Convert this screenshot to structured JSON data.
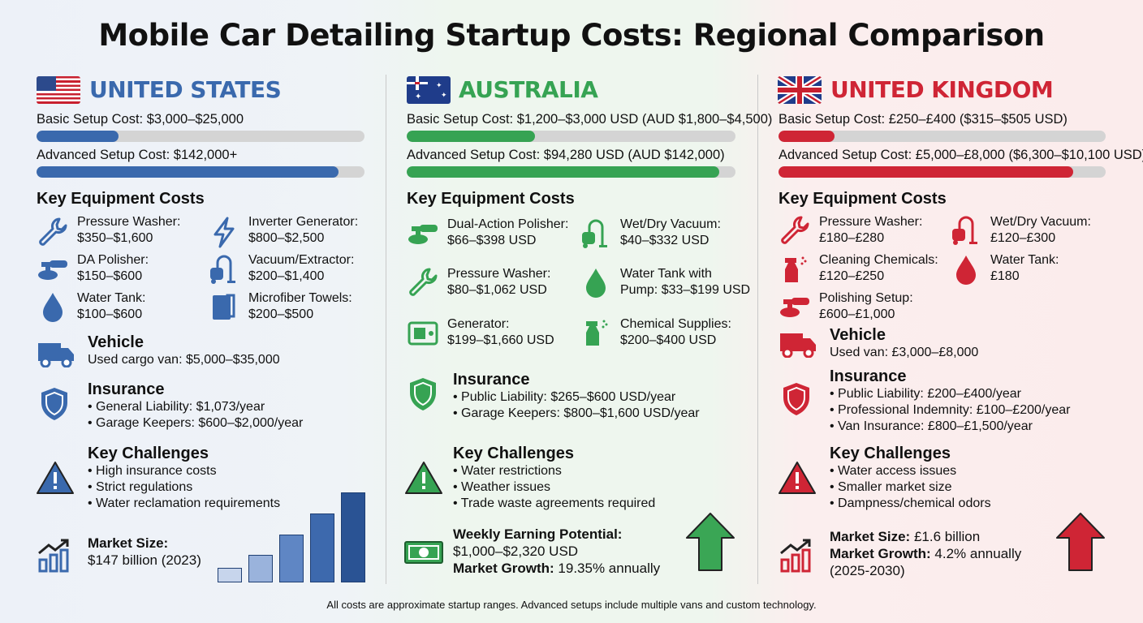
{
  "title": "Mobile Car Detailing Startup Costs: Regional Comparison",
  "colors": {
    "us": "#3a69ad",
    "au": "#36a353",
    "uk": "#cf2535"
  },
  "us": {
    "name": "UNITED STATES",
    "basic": {
      "label": "Basic Setup Cost: $3,000–$25,000",
      "fill_pct": 25
    },
    "advanced": {
      "label": "Advanced Setup Cost: $142,000+",
      "fill_pct": 92
    },
    "equipment_heading": "Key Equipment Costs",
    "equipment": [
      {
        "icon": "wrench-icon",
        "name": "Pressure Washer:",
        "cost": "$350–$1,600"
      },
      {
        "icon": "lightning-icon",
        "name": "Inverter Generator:",
        "cost": "$800–$2,500"
      },
      {
        "icon": "polisher-icon",
        "name": "DA Polisher:",
        "cost": "$150–$600"
      },
      {
        "icon": "vacuum-icon",
        "name": "Vacuum/Extractor:",
        "cost": "$200–$1,400"
      },
      {
        "icon": "water-drop-icon",
        "name": "Water Tank:",
        "cost": "$100–$600"
      },
      {
        "icon": "towel-icon",
        "name": "Microfiber Towels:",
        "cost": "$200–$500"
      }
    ],
    "vehicle": {
      "heading": "Vehicle",
      "text": "Used cargo van: $5,000–$35,000"
    },
    "insurance": {
      "heading": "Insurance",
      "items": [
        "General Liability: $1,073/year",
        "Garage Keepers: $600–$2,000/year"
      ]
    },
    "challenges": {
      "heading": "Key Challenges",
      "items": [
        "High insurance costs",
        "Strict regulations",
        "Water reclamation requirements"
      ]
    },
    "market": {
      "label": "Market Size:",
      "value": "$147 billion (2023)"
    }
  },
  "au": {
    "name": "AUSTRALIA",
    "basic": {
      "label": "Basic Setup Cost: $1,200–$3,000 USD (AUD $1,800–$4,500)",
      "fill_pct": 39
    },
    "advanced": {
      "label": "Advanced Setup Cost: $94,280 USD (AUD $142,000)",
      "fill_pct": 95
    },
    "equipment_heading": "Key Equipment Costs",
    "equipment": [
      {
        "icon": "polisher-icon",
        "name": "Dual-Action Polisher:",
        "cost": "$66–$398 USD"
      },
      {
        "icon": "vacuum-icon",
        "name": "Wet/Dry Vacuum:",
        "cost": "$40–$332 USD"
      },
      {
        "icon": "wrench-icon",
        "name": "Pressure Washer:",
        "cost": "$80–$1,062 USD"
      },
      {
        "icon": "water-drop-icon",
        "name": "Water Tank with",
        "cost": "Pump: $33–$199 USD"
      },
      {
        "icon": "generator-icon",
        "name": "Generator:",
        "cost": "$199–$1,660 USD"
      },
      {
        "icon": "spray-bottle-icon",
        "name": "Chemical Supplies:",
        "cost": "$200–$400 USD"
      }
    ],
    "insurance": {
      "heading": "Insurance",
      "items": [
        "Public Liability: $265–$600 USD/year",
        "Garage Keepers: $800–$1,600 USD/year"
      ]
    },
    "challenges": {
      "heading": "Key Challenges",
      "items": [
        "Water restrictions",
        "Weather issues",
        "Trade waste agreements required"
      ]
    },
    "earning": {
      "label": "Weekly Earning Potential:",
      "value": "$1,000–$2,320 USD"
    },
    "growth": {
      "label": "Market Growth:",
      "value": "19.35% annually"
    }
  },
  "uk": {
    "name": "UNITED KINGDOM",
    "basic": {
      "label": "Basic Setup Cost: £250–£400 ($315–$505 USD)",
      "fill_pct": 17
    },
    "advanced": {
      "label": "Advanced Setup Cost: £5,000–£8,000 ($6,300–$10,100 USD)",
      "fill_pct": 90
    },
    "equipment_heading": "Key Equipment Costs",
    "equipment": [
      {
        "icon": "wrench-icon",
        "name": "Pressure Washer:",
        "cost": "£180–£280"
      },
      {
        "icon": "vacuum-icon",
        "name": "Wet/Dry Vacuum:",
        "cost": "£120–£300"
      },
      {
        "icon": "spray-bottle-icon",
        "name": "Cleaning Chemicals:",
        "cost": "£120–£250"
      },
      {
        "icon": "water-drop-icon",
        "name": "Water Tank:",
        "cost": "£180"
      },
      {
        "icon": "polisher-icon",
        "name": "Polishing Setup:",
        "cost": "£600–£1,000"
      }
    ],
    "vehicle": {
      "heading": "Vehicle",
      "text": "Used van: £3,000–£8,000"
    },
    "insurance": {
      "heading": "Insurance",
      "items": [
        "Public Liability: £200–£400/year",
        "Professional Indemnity: £100–£200/year",
        "Van Insurance: £800–£1,500/year"
      ]
    },
    "challenges": {
      "heading": "Key Challenges",
      "items": [
        "Water access issues",
        "Smaller market size",
        "Dampness/chemical odors"
      ]
    },
    "market": {
      "label": "Market Size:",
      "value": "£1.6 billion"
    },
    "growth": {
      "label": "Market Growth:",
      "value": "4.2% annually",
      "period": "(2025-2030)"
    }
  },
  "footer": "All costs are approximate startup ranges. Advanced setups include multiple vans and custom technology."
}
